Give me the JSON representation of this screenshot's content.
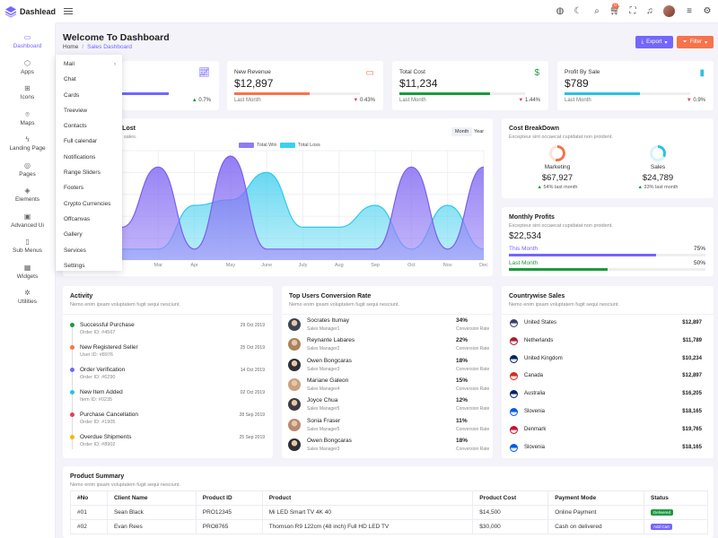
{
  "app": {
    "name": "Dashlead"
  },
  "colors": {
    "accent": "#7366ff",
    "orange": "#f7734c",
    "green": "#1c9a3e",
    "cyan": "#2cc0e6"
  },
  "header": {
    "icons": [
      "menu-icon",
      "globe-icon",
      "moon-icon",
      "search-icon",
      "cart-icon",
      "fullscreen-icon",
      "bell-icon",
      "avatar",
      "list-icon",
      "gear-icon"
    ],
    "cart_badge": "0"
  },
  "sidebar": {
    "items": [
      {
        "label": "Dashboard",
        "icon": "monitor-icon"
      },
      {
        "label": "Apps",
        "icon": "box-icon"
      },
      {
        "label": "Icons",
        "icon": "grid-icon"
      },
      {
        "label": "Maps",
        "icon": "map-pin-icon"
      },
      {
        "label": "Landing Page",
        "icon": "zap-icon"
      },
      {
        "label": "Pages",
        "icon": "compass-icon"
      },
      {
        "label": "Elements",
        "icon": "layers-icon"
      },
      {
        "label": "Advanced Ui",
        "icon": "briefcase-icon"
      },
      {
        "label": "Sub Menus",
        "icon": "smartphone-icon"
      },
      {
        "label": "Widgets",
        "icon": "calendar-icon"
      },
      {
        "label": "Utilities",
        "icon": "settings-icon"
      }
    ]
  },
  "dropdown": {
    "items": [
      "Mail",
      "Chat",
      "Cards",
      "Treeview",
      "Contacts",
      "Full calendar",
      "Notifications",
      "Range Sliders",
      "Footers",
      "Crypto Currencies",
      "Offcanvas",
      "Gallery",
      "Services",
      "Settings"
    ]
  },
  "page": {
    "title": "Welcome To Dashboard",
    "breadcrumb": {
      "home": "Home",
      "current": "Sales Dashboard"
    },
    "export_label": "Export",
    "filter_label": "Filter"
  },
  "stats": [
    {
      "label": "",
      "value": "",
      "sub": "",
      "pct": "0.7%",
      "bar": 0.75,
      "color": "#7366ff",
      "trend": "up",
      "icon": "chart-icon"
    },
    {
      "label": "New Revenue",
      "value": "$12,897",
      "sub": "Last Month",
      "pct": "0.43%",
      "bar": 0.6,
      "color": "#f7734c",
      "trend": "down",
      "icon": "cash-icon"
    },
    {
      "label": "Total Cost",
      "value": "$11,234",
      "sub": "Last Month",
      "pct": "1.44%",
      "bar": 0.72,
      "color": "#1c9a3e",
      "trend": "down",
      "icon": "dollar-icon"
    },
    {
      "label": "Profit By Sale",
      "value": "$789",
      "sub": "Last Month",
      "pct": "0.9%",
      "bar": 0.6,
      "color": "#2cc0e6",
      "trend": "down",
      "icon": "signal-icon"
    }
  ],
  "area_chart": {
    "title": "in/Lost",
    "subtitle": "sales.",
    "tabs": [
      "Month",
      "Year"
    ],
    "legend": [
      {
        "name": "Total Win",
        "color": "#8e7cf4"
      },
      {
        "name": "Total Loss",
        "color": "#3ad1ef"
      }
    ]
  },
  "chart_data": {
    "type": "area",
    "categories": [
      "",
      "Mar",
      "Apr",
      "May",
      "June",
      "July",
      "Aug",
      "Sep",
      "Oct",
      "Nov",
      "Dec"
    ],
    "series": [
      {
        "name": "Total Win",
        "values": [
          0.3,
          0.85,
          0.1,
          0.95,
          0.1,
          0.1,
          0.1,
          0.1,
          0.85,
          0.1,
          0.85
        ]
      },
      {
        "name": "Total Loss",
        "values": [
          0.1,
          0.1,
          0.5,
          0.55,
          0.8,
          0.3,
          0.3,
          0.5,
          0.1,
          0.5,
          0.1
        ]
      }
    ]
  },
  "cost_breakdown": {
    "title": "Cost BreakDown",
    "subtitle": "Excepteur sint occaecat cupidatat non proident.",
    "items": [
      {
        "label": "Marketing",
        "value": "$67,927",
        "pct": "54% last month",
        "color": "#f7734c",
        "fraction": 0.54
      },
      {
        "label": "Sales",
        "value": "$24,789",
        "pct": "33% last month",
        "color": "#2cc0e6",
        "fraction": 0.33
      }
    ]
  },
  "monthly_profits": {
    "title": "Monthly Profits",
    "subtitle": "Excepteur sint occaecat cupidatat non proident.",
    "value": "$22,534",
    "rows": [
      {
        "label": "This Month",
        "pct": "75%",
        "fraction": 0.75,
        "color": "#7366ff"
      },
      {
        "label": "Last Month",
        "pct": "50%",
        "fraction": 0.5,
        "color": "#1c9a3e"
      }
    ]
  },
  "activity": {
    "title": "Activity",
    "subtitle": "Nemo enim ipsam voluptatem fugit sequi nesciunt.",
    "items": [
      {
        "title": "Successful Purchase",
        "sub": "Order ID: #4567",
        "date": "29 Oct 2019",
        "color": "#1c9a3e"
      },
      {
        "title": "New Registered Seller",
        "sub": "User ID: #8976",
        "date": "25 Oct 2019",
        "color": "#f7734c"
      },
      {
        "title": "Order Verification",
        "sub": "Order ID: #6290",
        "date": "14 Oct 2019",
        "color": "#7366ff"
      },
      {
        "title": "New Item Added",
        "sub": "Item ID: #0235",
        "date": "02 Oct 2019",
        "color": "#2cc0e6"
      },
      {
        "title": "Purchase Cancellation",
        "sub": "Order ID: #1905",
        "date": "28 Sep 2019",
        "color": "#e0405a"
      },
      {
        "title": "Overdue Shipments",
        "sub": "Order ID: #8902",
        "date": "25 Sep 2019",
        "color": "#f5b800"
      }
    ]
  },
  "top_users": {
    "title": "Top Users Conversion Rate",
    "subtitle": "Nemo enim ipsam voluptatem fugit sequi nesciunt.",
    "rate_label": "Conversion Rate",
    "items": [
      {
        "name": "Socrates Itumay",
        "role": "Sales Manager1",
        "pct": "34%",
        "color": "#3b4452"
      },
      {
        "name": "Reynante Labares",
        "role": "Sales Manager2",
        "pct": "22%",
        "color": "#a9835e"
      },
      {
        "name": "Owen Bongcaras",
        "role": "Sales Manager3",
        "pct": "18%",
        "color": "#2d3036"
      },
      {
        "name": "Mariane Galeon",
        "role": "Sales Manager4",
        "pct": "15%",
        "color": "#c9a080"
      },
      {
        "name": "Joyce Chua",
        "role": "Sales Manager5",
        "pct": "12%",
        "color": "#3e3a40"
      },
      {
        "name": "Sonia Fraser",
        "role": "Sales Manager5",
        "pct": "11%",
        "color": "#b88a70"
      },
      {
        "name": "Owen Bongcaras",
        "role": "Sales Manager3",
        "pct": "18%",
        "color": "#2d3036"
      }
    ]
  },
  "countries": {
    "title": "Countrywise Sales",
    "subtitle": "Nemo enim ipsam voluptatem fugit sequi nesciunt.",
    "items": [
      {
        "name": "United States",
        "value": "$12,897",
        "flag": "us-flag-icon",
        "color": "#3c3b6e"
      },
      {
        "name": "Netherlands",
        "value": "$11,789",
        "flag": "nl-flag-icon",
        "color": "#ae1c28"
      },
      {
        "name": "United Kingdom",
        "value": "$10,234",
        "flag": "uk-flag-icon",
        "color": "#012169"
      },
      {
        "name": "Canada",
        "value": "$12,897",
        "flag": "ca-flag-icon",
        "color": "#d52b1e"
      },
      {
        "name": "Australia",
        "value": "$16,205",
        "flag": "au-flag-icon",
        "color": "#012169"
      },
      {
        "name": "Slovenia",
        "value": "$18,165",
        "flag": "si-flag-icon",
        "color": "#005ce5"
      },
      {
        "name": "Denmark",
        "value": "$19,765",
        "flag": "dk-flag-icon",
        "color": "#c8102e"
      },
      {
        "name": "Slovenia",
        "value": "$18,165",
        "flag": "si-flag-icon",
        "color": "#005ce5"
      }
    ]
  },
  "product_summary": {
    "title": "Product Summary",
    "subtitle": "Nemo enim ipsam voluptatem fugit sequi nesciunt.",
    "headers": [
      "#No",
      "Client Name",
      "Product ID",
      "Product",
      "Product Cost",
      "Payment Mode",
      "Status"
    ],
    "rows": [
      {
        "no": "#01",
        "client": "Sean Black",
        "pid": "PRO12345",
        "product": "Mi LED Smart TV 4K 40",
        "cost": "$14,500",
        "mode": "Online Payment",
        "status": "Delivered",
        "status_color": "#1c9a3e"
      },
      {
        "no": "#02",
        "client": "Evan Rees",
        "pid": "PRO8765",
        "product": "Thomson R9 122cm (48 inch) Full HD LED TV",
        "cost": "$30,000",
        "mode": "Cash on delivered",
        "status": "Add Cart",
        "status_color": "#7366ff"
      }
    ]
  }
}
